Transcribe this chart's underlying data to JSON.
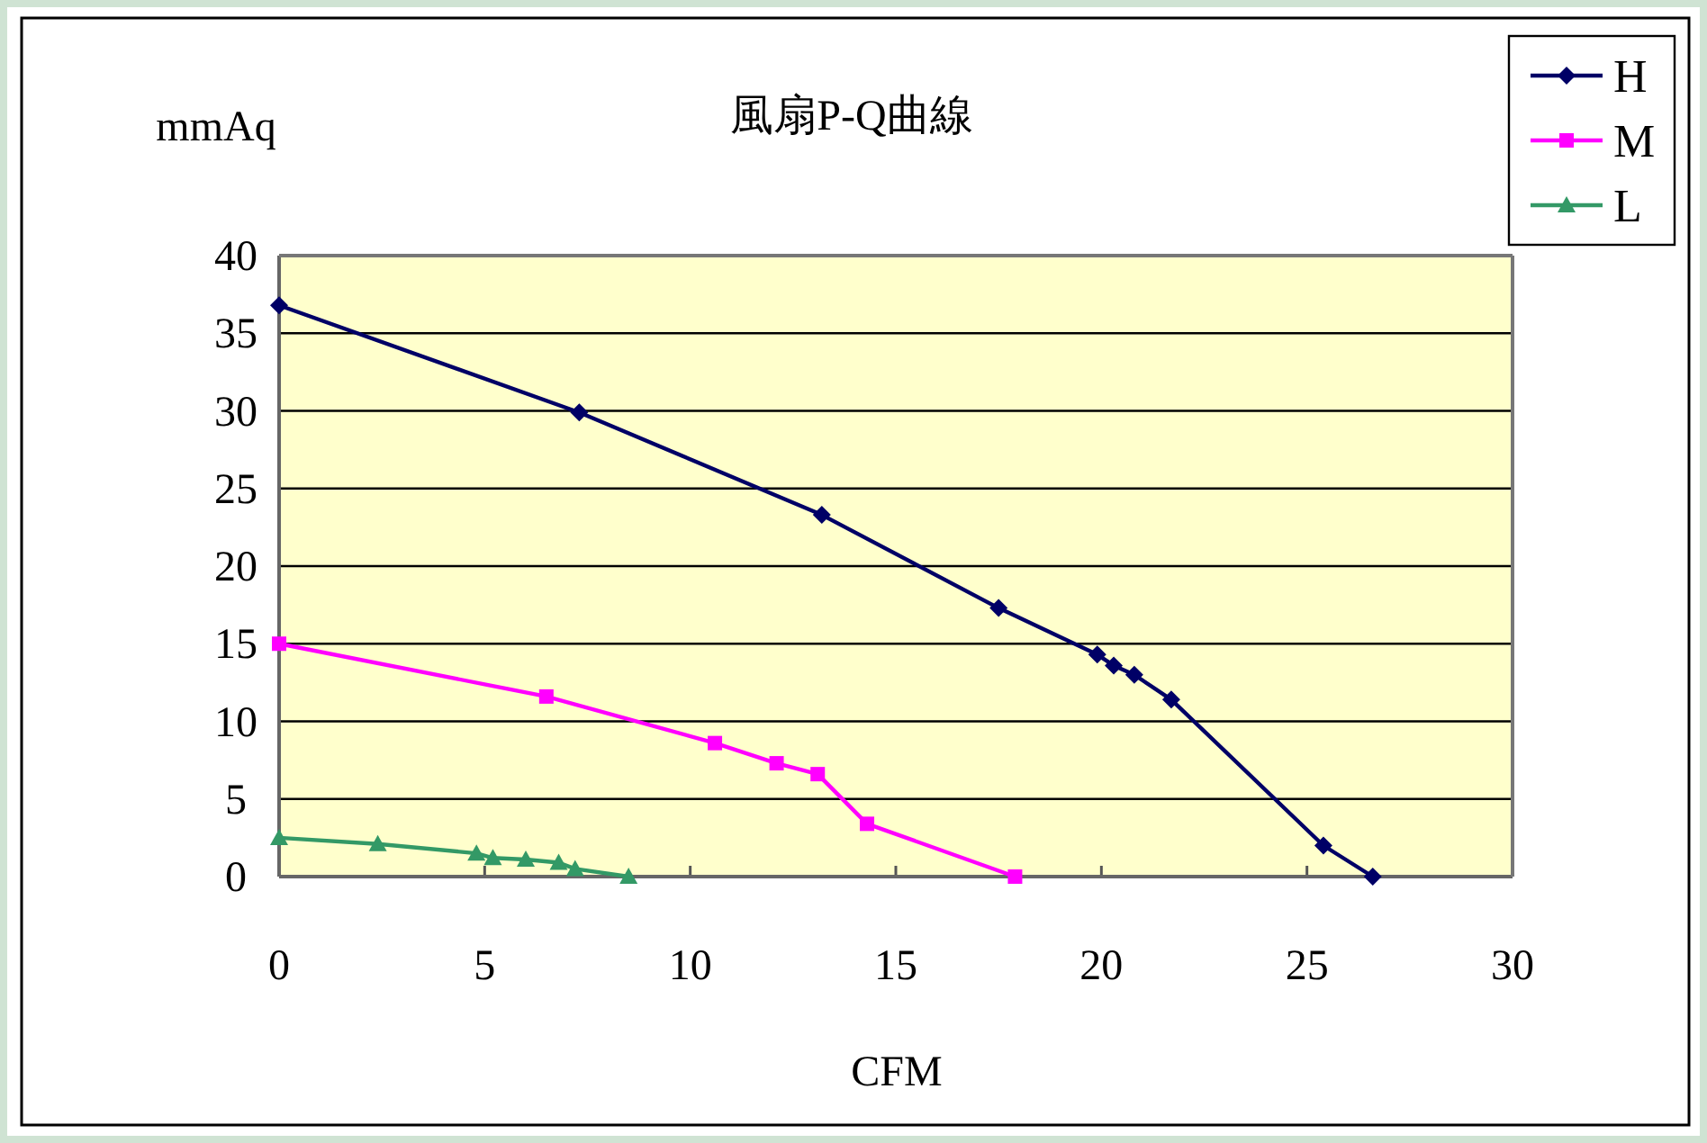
{
  "chart_data": {
    "type": "line",
    "title": "風扇P-Q曲線",
    "xlabel": "CFM",
    "ylabel": "mmAq",
    "xlim": [
      0,
      30
    ],
    "xticks": [
      0,
      5,
      10,
      15,
      20,
      25,
      30
    ],
    "ylim": [
      0,
      40
    ],
    "yticks": [
      0,
      5,
      10,
      15,
      20,
      25,
      30,
      35,
      40
    ],
    "grid": "y",
    "legend": "top right",
    "series": [
      {
        "name": "H",
        "color": "#000066",
        "marker": "diamond",
        "x": [
          0,
          7.3,
          13.2,
          17.5,
          19.9,
          20.3,
          20.8,
          21.7,
          25.4,
          26.6
        ],
        "values": [
          36.8,
          29.9,
          23.3,
          17.3,
          14.3,
          13.6,
          13.0,
          11.4,
          2.0,
          0
        ]
      },
      {
        "name": "M",
        "color": "#ff00ff",
        "marker": "square",
        "x": [
          0,
          6.5,
          10.6,
          12.1,
          13.1,
          14.3,
          17.9
        ],
        "values": [
          15.0,
          11.6,
          8.6,
          7.3,
          6.6,
          3.4,
          0
        ]
      },
      {
        "name": "L",
        "color": "#339966",
        "marker": "triangle",
        "x": [
          0,
          2.4,
          4.8,
          5.2,
          6.0,
          6.8,
          7.2,
          8.5
        ],
        "values": [
          2.5,
          2.1,
          1.5,
          1.2,
          1.1,
          0.9,
          0.5,
          0
        ]
      }
    ]
  }
}
